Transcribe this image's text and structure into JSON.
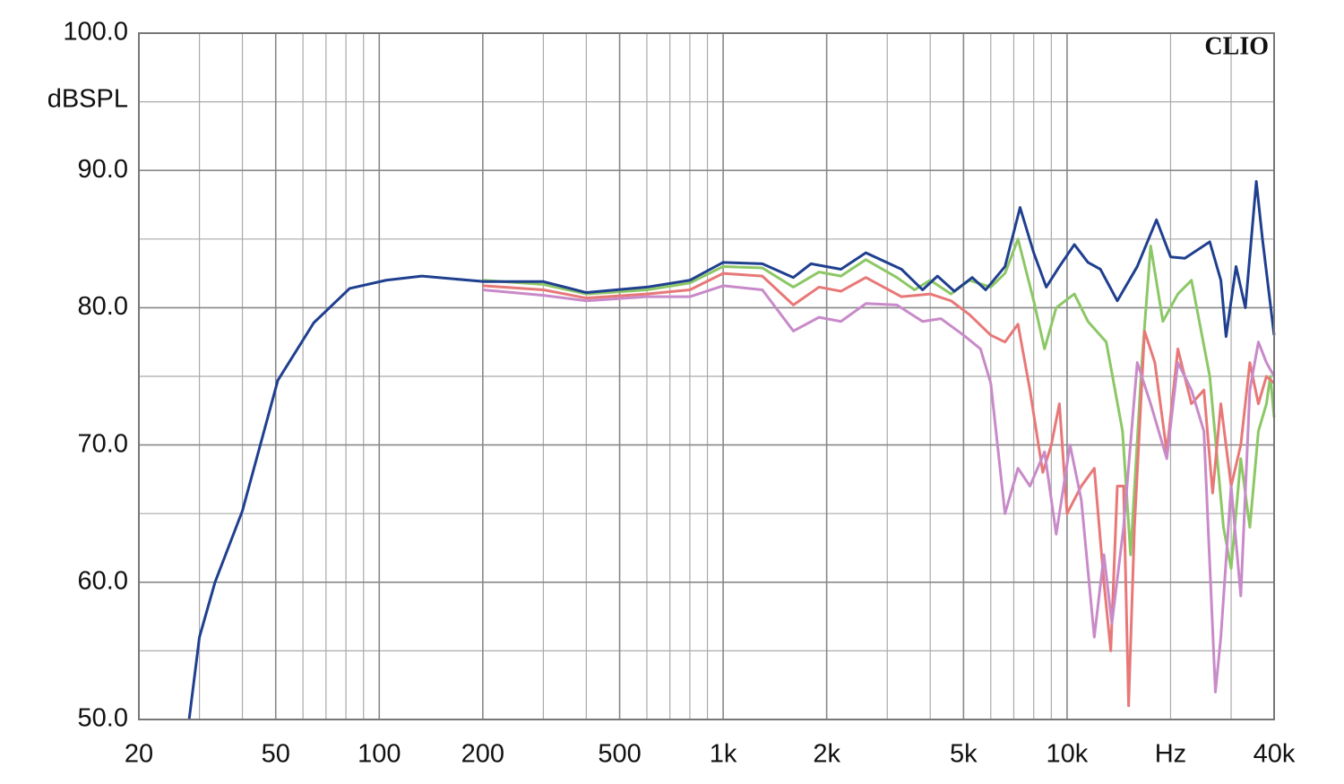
{
  "chart_data": {
    "type": "line",
    "brand": "CLIO",
    "y_label": "dBSPL",
    "x_label": "Hz",
    "x_log": true,
    "grid": true,
    "xlim": [
      20,
      40000
    ],
    "ylim": [
      50,
      100
    ],
    "xticks": [
      20,
      50,
      100,
      200,
      500,
      {
        "value": 1000,
        "label": "1k"
      },
      {
        "value": 2000,
        "label": "2k"
      },
      {
        "value": 5000,
        "label": "5k"
      },
      {
        "value": 10000,
        "label": "10k"
      },
      {
        "value": 40000,
        "label": "40k"
      }
    ],
    "x_minor_grid": [
      30,
      40,
      60,
      70,
      80,
      90,
      300,
      400,
      600,
      700,
      800,
      900,
      3000,
      4000,
      6000,
      7000,
      8000,
      9000,
      20000,
      30000
    ],
    "x_label_at": 20000,
    "yticks": [
      {
        "value": 50,
        "label": "50.0"
      },
      {
        "value": 60,
        "label": "60.0"
      },
      {
        "value": 70,
        "label": "70.0"
      },
      {
        "value": 80,
        "label": "80.0"
      },
      {
        "value": 90,
        "label": "90.0"
      },
      {
        "value": 100,
        "label": "100.0"
      }
    ],
    "y_minor_grid": [
      55,
      65,
      75,
      85,
      95
    ],
    "series": [
      {
        "color": "#8cc765",
        "x": [
          200,
          300,
          400,
          600,
          800,
          1000,
          1300,
          1600,
          1900,
          2200,
          2600,
          3200,
          3600,
          4000,
          4600,
          5200,
          6000,
          6600,
          7200,
          8000,
          8600,
          9300,
          10500,
          11500,
          13000,
          14500,
          15300,
          16500,
          17500,
          19000,
          21000,
          23000,
          26000,
          28500,
          30000,
          32000,
          34000,
          36000,
          38000,
          39000,
          40000
        ],
        "values": [
          82,
          81.7,
          81,
          81.3,
          81.8,
          83,
          82.9,
          81.5,
          82.6,
          82.3,
          83.5,
          82.2,
          81.3,
          82,
          81,
          82,
          81.5,
          82.5,
          85,
          80.5,
          77,
          80,
          81,
          79,
          77.5,
          71,
          62,
          76,
          84.5,
          79,
          81,
          82,
          75,
          64,
          61,
          69,
          64,
          71,
          73,
          75,
          72
        ]
      },
      {
        "color": "#e87878",
        "x": [
          200,
          300,
          400,
          600,
          800,
          1000,
          1300,
          1600,
          1900,
          2200,
          2600,
          3300,
          4000,
          4600,
          5200,
          6000,
          6600,
          7200,
          7800,
          8500,
          9000,
          9500,
          10000,
          11000,
          12000,
          12800,
          13400,
          14000,
          14600,
          15100,
          15700,
          16800,
          18000,
          19500,
          21000,
          23000,
          25000,
          26500,
          28000,
          30000,
          32000,
          34000,
          36000,
          38000,
          40000
        ],
        "values": [
          81.6,
          81.3,
          80.7,
          81,
          81.3,
          82.5,
          82.3,
          80.2,
          81.5,
          81.2,
          82.2,
          80.8,
          81,
          80.5,
          79.5,
          78,
          77.5,
          78.8,
          74,
          68,
          70,
          73,
          65,
          67,
          68.3,
          60,
          55,
          67,
          67,
          51,
          64,
          78.3,
          76,
          69.5,
          77,
          73,
          74,
          66.5,
          73,
          67,
          70,
          76,
          73,
          75,
          74.5
        ]
      },
      {
        "color": "#c88ac8",
        "x": [
          200,
          300,
          400,
          600,
          800,
          1000,
          1300,
          1600,
          1900,
          2200,
          2600,
          3200,
          3800,
          4300,
          5000,
          5600,
          6000,
          6600,
          7200,
          7800,
          8600,
          9300,
          10200,
          11000,
          12000,
          12800,
          13500,
          14600,
          16000,
          17500,
          19500,
          21000,
          23000,
          25000,
          27000,
          28000,
          30000,
          32000,
          34000,
          36000,
          38000,
          40000
        ],
        "values": [
          81.3,
          80.9,
          80.5,
          80.8,
          80.8,
          81.6,
          81.3,
          78.3,
          79.3,
          79,
          80.3,
          80.2,
          79,
          79.2,
          78,
          77,
          74.5,
          65,
          68.3,
          67,
          69.5,
          63.5,
          70,
          66,
          56,
          62,
          57,
          64,
          76,
          73,
          69,
          76,
          74,
          71,
          52,
          56,
          67,
          59,
          74,
          77.5,
          76,
          75
        ]
      },
      {
        "color": "#1f3f8f",
        "x": [
          28,
          30,
          33.3,
          40,
          50.7,
          64.5,
          82,
          104.7,
          133,
          202,
          300,
          400,
          600,
          800,
          1000,
          1300,
          1600,
          1800,
          2200,
          2600,
          3300,
          3800,
          4200,
          4700,
          5300,
          5800,
          6600,
          7300,
          8000,
          8700,
          9500,
          10500,
          11500,
          12500,
          14000,
          16000,
          18200,
          20000,
          22000,
          26000,
          28000,
          29000,
          31000,
          33000,
          35500,
          37000,
          40000
        ],
        "values": [
          50,
          56,
          60,
          65.2,
          74.7,
          78.9,
          81.4,
          82,
          82.3,
          81.9,
          81.9,
          81.1,
          81.5,
          82,
          83.3,
          83.2,
          82.2,
          83.2,
          82.8,
          84,
          82.8,
          81.3,
          82.3,
          81.2,
          82.2,
          81.3,
          83,
          87.3,
          84,
          81.5,
          83,
          84.6,
          83.3,
          82.8,
          80.5,
          83,
          86.4,
          83.7,
          83.6,
          84.8,
          82,
          77.9,
          83,
          80,
          89.2,
          85,
          78
        ]
      }
    ]
  }
}
